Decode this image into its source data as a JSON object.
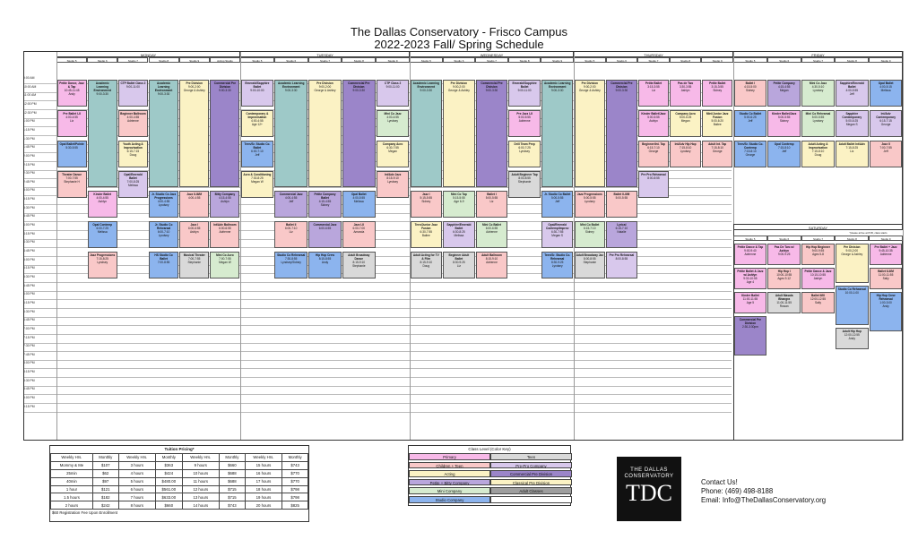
{
  "title_line1": "The Dallas Conservatory - Frisco Campus",
  "title_line2": "2022-2023 Fall/ Spring Schedule",
  "days": [
    "MONDAY",
    "TUESDAY",
    "WEDNESDAY",
    "THURSDAY",
    "FRIDAY"
  ],
  "saturday_label": "SATURDAY",
  "saturday_note": "*please arrive at 8:45, class starts",
  "times": [
    "9:00 AM",
    "10:00 AM",
    "11:00 AM",
    "12:00 PM",
    "12:30 PM",
    "1:00 PM",
    "1:15 PM",
    "1:30 PM",
    "1:45 PM",
    "2:00 PM",
    "2:15 PM",
    "2:30 PM",
    "2:45 PM",
    "3:00 PM",
    "3:15 PM",
    "3:30 PM",
    "3:45 PM",
    "4:00 PM",
    "4:15 PM",
    "4:30 PM",
    "4:45 PM",
    "5:00 PM",
    "5:15 PM",
    "5:30 PM",
    "5:45 PM",
    "6:00 PM",
    "6:15 PM",
    "6:30 PM",
    "6:45 PM",
    "7:00 PM",
    "7:15 PM",
    "7:30 PM",
    "7:45 PM",
    "8:00 PM",
    "8:15 PM",
    "8:30 PM",
    "8:45 PM",
    "9:00 PM",
    "9:15 PM"
  ],
  "studios": {
    "monday": [
      "Studio 5",
      "Studio 6",
      "Studio 7",
      "Studio 8",
      "Studio 9",
      "Acting Studio"
    ],
    "tuesday": [
      "Studio 5",
      "Studio 6",
      "Studio 7",
      "Studio 8",
      "Studio 9"
    ],
    "wednesday": [
      "Studio 5",
      "Studio 6",
      "Studio 7",
      "Studio 8",
      "Studio 9"
    ],
    "thursday": [
      "Studio 5",
      "Studio 6",
      "Studio 7",
      "Studio 8",
      "Studio 9"
    ],
    "friday": [
      "Studio 5",
      "Studio 6",
      "Studio 7",
      "Studio 8",
      "Studio 9"
    ],
    "saturday": [
      "Studio 5",
      "Studio 6",
      "Studio 7",
      "Studio 8",
      "Studio 9"
    ]
  },
  "events": [
    {
      "t": "Petite Dance, Jazz & Tap",
      "s": "10:45-11:45",
      "i": "Andy",
      "c": "#f7b9e8"
    },
    {
      "t": "Academic Learning Environment",
      "s": "9:00-3:30",
      "i": "",
      "c": "#9ec9c8"
    },
    {
      "t": "CTP Ballet Class 2",
      "s": "9:00-11:00",
      "i": "",
      "c": "#d8c8ec"
    },
    {
      "t": "Academic Learning Environment",
      "s": "9:00-3:30",
      "i": "",
      "c": "#9ec9c8"
    },
    {
      "t": "Pre Division",
      "s": "9:00-2:00",
      "i": "George & Ashley",
      "c": "#fbf2c4"
    },
    {
      "t": "Commercial Pre Division",
      "s": "9:00-3:30",
      "i": "",
      "c": "#9b85c9"
    },
    {
      "t": "Emerald/Sapphire Ballet",
      "s": "9:00-10:00",
      "i": "",
      "c": "#d8c8ec"
    },
    {
      "t": "Academic Learning Environment",
      "s": "9:00-3:30",
      "i": "",
      "c": "#9ec9c8"
    },
    {
      "t": "Pre Division",
      "s": "9:00-2:00",
      "i": "George & Ashley",
      "c": "#fbf2c4"
    },
    {
      "t": "Commercial Pre Division",
      "s": "9:00-3:30",
      "i": "",
      "c": "#9b85c9"
    },
    {
      "t": "CTP Class 2",
      "s": "9:00-11:00",
      "i": "",
      "c": "#d8c8ec"
    },
    {
      "t": "Academic Learning Environment",
      "s": "9:00-3:30",
      "i": "",
      "c": "#9ec9c8"
    },
    {
      "t": "Pre Division",
      "s": "9:00-2:00",
      "i": "George & Ashley",
      "c": "#fbf2c4"
    },
    {
      "t": "Commercial Pre Division",
      "s": "9:00-3:30",
      "i": "",
      "c": "#9b85c9"
    },
    {
      "t": "Emerald/Sapphire Ballet",
      "s": "9:00-11:00",
      "i": "",
      "c": "#d8c8ec"
    },
    {
      "t": "Academic Learning Environment",
      "s": "9:00-3:30",
      "i": "",
      "c": "#9ec9c8"
    },
    {
      "t": "Pre Division",
      "s": "9:00-2:00",
      "i": "George & Ashley",
      "c": "#fbf2c4"
    },
    {
      "t": "Commercial Pre Division",
      "s": "9:00-3:30",
      "i": "",
      "c": "#9b85c9"
    },
    {
      "t": "Petite Ballet",
      "s": "3:15-3:55",
      "i": "Liz",
      "c": "#f7b9e8"
    },
    {
      "t": "Pas de Two",
      "s": "3:30-3:55",
      "i": "Ashlyn",
      "c": "#f7b9e8"
    },
    {
      "t": "Petite Ballet",
      "s": "3:15-3:55",
      "i": "Sidney",
      "c": "#f7b9e8"
    },
    {
      "t": "Ballet I",
      "s": "4:15-5:00",
      "i": "Sidney",
      "c": "#f9c8c8"
    },
    {
      "t": "Petite Company",
      "s": "4:15-4:55",
      "i": "Megan",
      "c": "#b9a6dc"
    },
    {
      "t": "Mini Co Jazz",
      "s": "4:30-5:10",
      "i": "Lyndsey",
      "c": "#d6ebcf"
    },
    {
      "t": "Sapphire/Emerald Ballet",
      "s": "4:00-5:55",
      "i": "Jeff",
      "c": "#d8c8ec"
    },
    {
      "t": "Opal Ballet",
      "s": "4:00-5:15",
      "i": "Melissa",
      "c": "#8cb4ee"
    },
    {
      "t": "Pre Ballet I-II",
      "s": "4:00-4:55",
      "i": "Liz",
      "c": "#f7b9e8"
    },
    {
      "t": "Kinder Ballet",
      "s": "4:00-4:55",
      "i": "Ashlyn",
      "c": "#f7b9e8"
    },
    {
      "t": "Beginner Ballroom",
      "s": "4:00-4:55",
      "i": "Adrienne",
      "c": "#f9c8c8"
    },
    {
      "t": "Jr. Studio Co Jazz Progressions",
      "s": "4:00-4:55",
      "i": "Lyndsey",
      "c": "#8cb4ee"
    },
    {
      "t": "Jazz II-III/M",
      "s": "4:00-4:55",
      "i": "",
      "c": "#f9c8c8"
    },
    {
      "t": "Bitty Company",
      "s": "4:15-4:55",
      "i": "Ashlyn",
      "c": "#b9a6dc"
    },
    {
      "t": "Contemporary & Improvisation",
      "s": "4:00-4:55",
      "i": "Age 12+",
      "c": "#fbf2c4"
    },
    {
      "t": "Commercial Jazz",
      "s": "4:00-4:55",
      "i": "Jeff",
      "c": "#b9a6dc"
    },
    {
      "t": "Petite Company Ballet",
      "s": "4:15-4:55",
      "i": "Sidney",
      "c": "#b9a6dc"
    },
    {
      "t": "Opal Ballet",
      "s": "4:00-5:55",
      "i": "Melissa",
      "c": "#8cb4ee"
    },
    {
      "t": "Mini Co Jazz",
      "s": "4:00-4:55",
      "i": "Lyndsey",
      "c": "#d6ebcf"
    },
    {
      "t": "Jazz I",
      "s": "5:15-5:55",
      "i": "Sidney",
      "c": "#f9c8c8"
    },
    {
      "t": "Mini Co Tap",
      "s": "5:15-5:55",
      "i": "Age 6-9",
      "c": "#d6ebcf"
    },
    {
      "t": "Ballet I",
      "s": "5:00-5:55",
      "i": "Liz",
      "c": "#f9c8c8"
    },
    {
      "t": "Pre Jazz I-II",
      "s": "5:00-5:55",
      "i": "Adrienne",
      "c": "#f7b9e8"
    },
    {
      "t": "Jr. Studio Co Ballet",
      "s": "5:00-5:55",
      "i": "Jeff",
      "c": "#8cb4ee"
    },
    {
      "t": "Jazz Progressions",
      "s": "5:00-5:55",
      "i": "Lyndsey",
      "c": "#f9c8c8"
    },
    {
      "t": "Ballet II-II/M",
      "s": "5:00-5:55",
      "i": "",
      "c": "#f9c8c8"
    },
    {
      "t": "Kinder Ballet/Jazz",
      "s": "5:00-5:55",
      "i": "Ashlyn",
      "c": "#f7b9e8"
    },
    {
      "t": "Company Acro",
      "s": "5:00-6:25",
      "i": "Megan",
      "c": "#fbf2c4"
    },
    {
      "t": "Mini/Junior Jazz Fusion",
      "s": "5:00-6:20",
      "i": "Bailee",
      "c": "#fbf2c4"
    },
    {
      "t": "Studio Co Ballet",
      "s": "5:00-6:25",
      "i": "Jeff",
      "c": "#8cb4ee"
    },
    {
      "t": "Kinder Ballet/Jazz",
      "s": "5:00-5:55",
      "i": "Sidney",
      "c": "#f7b9e8"
    },
    {
      "t": "Mini Co Rehearsal",
      "s": "5:00-5:55",
      "i": "Lyndsey",
      "c": "#d6ebcf"
    },
    {
      "t": "Sapphire Contemporary",
      "s": "5:00-6:25",
      "i": "Megan S",
      "c": "#d8c8ec"
    },
    {
      "t": "Int/Adv Contemporary",
      "s": "6:15-7:15",
      "i": "George",
      "c": "#d8c8ec"
    },
    {
      "t": "Opal Ballet/Pointe",
      "s": "5:30-5:55",
      "i": "",
      "c": "#8cb4ee"
    },
    {
      "t": "Opal Contemp",
      "s": "6:00-7:25",
      "i": "Melissa",
      "c": "#8cb4ee"
    },
    {
      "t": "Youth Acting & Improvisation",
      "s": "6:15-7:15",
      "i": "Doug",
      "c": "#fbf2c4"
    },
    {
      "t": "Jr. Studio Co Rehearsal",
      "s": "6:00-7:10",
      "i": "Lyndsey",
      "c": "#8cb4ee"
    },
    {
      "t": "Jazz I",
      "s": "6:00-6:55",
      "i": "Ashlyn",
      "c": "#f9c8c8"
    },
    {
      "t": "Int/Adv Ballroom",
      "s": "6:00-6:55",
      "i": "Adrienne",
      "c": "#f9c8c8"
    },
    {
      "t": "Teen/Sr. Studio Co. Ballet",
      "s": "6:00-7:10",
      "i": "Jeff",
      "c": "#8cb4ee"
    },
    {
      "t": "Ballet II",
      "s": "6:00-7:10",
      "i": "Liz",
      "c": "#f9c8c8"
    },
    {
      "t": "Commercial Jazz",
      "s": "6:00-6:55",
      "i": "",
      "c": "#b9a6dc"
    },
    {
      "t": "Jazz I-II",
      "s": "6:00-7:00",
      "i": "Amanda",
      "c": "#f9c8c8"
    },
    {
      "t": "Company Acro",
      "s": "6:30-7:55",
      "i": "Megan",
      "c": "#fbf2c4"
    },
    {
      "t": "Teen/Junior Jazz Fusion",
      "s": "6:30-7:55",
      "i": "Bailee",
      "c": "#fbf2c4"
    },
    {
      "t": "Sapphire/Emerald Ballet",
      "s": "6:30-8:25",
      "i": "Melissa",
      "c": "#d8c8ec"
    },
    {
      "t": "Mini Co Ballet",
      "s": "6:00-6:55",
      "i": "Adrienne",
      "c": "#d6ebcf"
    },
    {
      "t": "Drill Team Prep",
      "s": "6:00-7:25",
      "i": "Lyndsey",
      "c": "#fbf2c4"
    },
    {
      "t": "Opal/Emerald Contemp/Improv",
      "s": "6:30-7:55",
      "i": "Megan S",
      "c": "#d8c8ec"
    },
    {
      "t": "Mini Co Ballet",
      "s": "6:15-7:10",
      "i": "Sidney",
      "c": "#d6ebcf"
    },
    {
      "t": "Lyrical",
      "s": "6:15-7:10",
      "i": "Natalie",
      "c": "#b9a6dc"
    },
    {
      "t": "Beginner/Int. Tap",
      "s": "6:15-7:10",
      "i": "George",
      "c": "#f9c8c8"
    },
    {
      "t": "Int/Adv Hip Hop",
      "s": "7:15-8:10",
      "i": "Lyndsey",
      "c": "#f9c8c8"
    },
    {
      "t": "Adult Int. Tap",
      "s": "7:15-8:10",
      "i": "George",
      "c": "#f9c8c8"
    },
    {
      "t": "Teen/Sr. Studio Co. Contemp",
      "s": "7:15-8:10",
      "i": "George",
      "c": "#8cb4ee"
    },
    {
      "t": "Opal Contemp",
      "s": "7:15-8:10",
      "i": "Jeff",
      "c": "#8cb4ee"
    },
    {
      "t": "Adult Acting & Improvisation",
      "s": "7:15-8:10",
      "i": "Doug",
      "c": "#fbf2c4"
    },
    {
      "t": "Adult Ballet Int/Adv",
      "s": "7:15-8:25",
      "i": "Liz",
      "c": "#fbf2c4"
    },
    {
      "t": "Jazz II",
      "s": "7:00-7:55",
      "i": "Jeff",
      "c": "#f9c8c8"
    },
    {
      "t": "Theater Dance",
      "s": "7:00-7:55",
      "i": "Stephanie H",
      "c": "#f9c8c8"
    },
    {
      "t": "Jazz Progressions",
      "s": "7:15-8:25",
      "i": "Lyndsey",
      "c": "#f9c8c8"
    },
    {
      "t": "Opal/Emerald Ballet",
      "s": "7:00-8:25",
      "i": "Melissa",
      "c": "#d8c8ec"
    },
    {
      "t": "HS Studio Co Ballet",
      "s": "7:00-8:55",
      "i": "",
      "c": "#8cb4ee"
    },
    {
      "t": "Musical Theater",
      "s": "7:00-7:55",
      "i": "Stephanie",
      "c": "#d9d9d9"
    },
    {
      "t": "Mini Co Acro",
      "s": "7:00-7:55",
      "i": "Megan W",
      "c": "#d6ebcf"
    },
    {
      "t": "Acro & Conditioning",
      "s": "7:30-8:25",
      "i": "Megan W",
      "c": "#fbf2c4"
    },
    {
      "t": "Studio Co Rehearsal",
      "s": "7:30-8:55",
      "i": "Lyndsey/Sidney",
      "c": "#8cb4ee"
    },
    {
      "t": "Hip Hop Crew",
      "s": "8:15-8:55",
      "i": "Andy",
      "c": "#8cb4ee"
    },
    {
      "t": "Adult Broadway Dance",
      "s": "8:15-9:10",
      "i": "Stephanie",
      "c": "#d9d9d9"
    },
    {
      "t": "Int/Adv Jazz",
      "s": "8:15-9:10",
      "i": "Lyndsey",
      "c": "#f9c8c8"
    },
    {
      "t": "Adult Acting for TV & Film",
      "s": "8:15-9:10",
      "i": "Doug",
      "c": "#d9d9d9"
    },
    {
      "t": "Beginner Adult Ballet",
      "s": "8:30-9:25",
      "i": "Liz",
      "c": "#d9d9d9"
    },
    {
      "t": "Adult Ballroom",
      "s": "8:15-9:10",
      "i": "Adrienne",
      "c": "#f9c8c8"
    },
    {
      "t": "Adult Beginner Tap",
      "s": "8:00-8:55",
      "i": "Stephanie",
      "c": "#d9d9d9"
    },
    {
      "t": "Teen/Sr. Studio Co. Rehearsal",
      "s": "8:30-9:25",
      "i": "Lyndsey",
      "c": "#8cb4ee"
    },
    {
      "t": "Adult Broadway Jaz",
      "s": "8:00-8:55",
      "i": "Stephanie",
      "c": "#d9d9d9"
    },
    {
      "t": "Pre Pro Rehearsal",
      "s": "8:00-8:55",
      "i": "",
      "c": "#d8c8ec"
    },
    {
      "t": "Pre Pro Rehearsal",
      "s": "8:00-8:55",
      "i": "",
      "c": "#d8c8ec"
    }
  ],
  "saturday_events": [
    {
      "t": "Petite Dance & Tap",
      "s": "9:00-9:40",
      "i": "Adrienne",
      "c": "#f7b9e8"
    },
    {
      "t": "Pas De Two w/ Ashlyn",
      "s": "9:00-9:25",
      "i": "",
      "c": "#f7b9e8"
    },
    {
      "t": "Hip Hop Beginner",
      "s": "9:00-9:55",
      "i": "Ages 5-8",
      "c": "#f9c8c8"
    },
    {
      "t": "Pre Division",
      "s": "9:00-2:00",
      "i": "George & Ashley",
      "c": "#fbf2c4"
    },
    {
      "t": "Pre Ballet + Jazz",
      "s": "9:45-10:35",
      "i": "Adrienne",
      "c": "#f7b9e8"
    },
    {
      "t": "Petite Ballet & Jazz w/ Ashlyn",
      "s": "9:30-10:55",
      "i": "Age 4",
      "c": "#f7b9e8"
    },
    {
      "t": "Hip Hop I",
      "s": "10:00-10:55",
      "i": "Ages 9-12",
      "c": "#f9c8c8"
    },
    {
      "t": "Petite Dance & Jazz",
      "s": "10:15-10:55",
      "i": "Ashlyn",
      "c": "#f7b9e8"
    },
    {
      "t": "Studio Co Rehearsal",
      "s": "10:00-1:00",
      "i": "",
      "c": "#8cb4ee"
    },
    {
      "t": "Ballet II-II/M",
      "s": "11:00-11:55",
      "i": "Sally",
      "c": "#f9c8c8"
    },
    {
      "t": "Kinder Ballet",
      "s": "11:00-11:55",
      "i": "Age 5",
      "c": "#f7b9e8"
    },
    {
      "t": "Adult Masala Bhangra",
      "s": "11:00-11:55",
      "i": "Rowan",
      "c": "#d9d9d9"
    },
    {
      "t": "Ballet II/III",
      "s": "12:00-12:55",
      "i": "Sally",
      "c": "#f9c8c8"
    },
    {
      "t": "Adult Hip Hop",
      "s": "12:00-12:55",
      "i": "Andy",
      "c": "#d9d9d9"
    },
    {
      "t": "Hip Hop Crew Rehearsal",
      "s": "1:00-3:00",
      "i": "Andy",
      "c": "#8cb4ee"
    },
    {
      "t": "Commercial Pre Division",
      "s": "2:30-3:30pm",
      "i": "",
      "c": "#9b85c9"
    }
  ],
  "tuition_title": "Tuition Pricing*",
  "tuition_headers": [
    "Weekly Hrs.",
    "Monthly",
    "Weekly Hrs.",
    "Monthly",
    "Weekly Hrs.",
    "Monthly",
    "Weekly Hrs.",
    "Monthly"
  ],
  "tuition_rows": [
    [
      "Mommy & Me",
      "$107",
      "3 hours",
      "$363",
      "9 hours",
      "$660",
      "15 hours",
      "$743"
    ],
    [
      "25min",
      "$62",
      "4 hours",
      "$424",
      "10 hours",
      "$688",
      "16 hours",
      "$770"
    ],
    [
      "40min",
      "$97",
      "5 hours",
      "$480.00",
      "11 hours",
      "$688",
      "17 hours",
      "$770"
    ],
    [
      "1 hour",
      "$121",
      "6 hours",
      "$561.00",
      "12 hours",
      "$715",
      "18 hours",
      "$798"
    ],
    [
      "1.5 hours",
      "$182",
      "7 hours",
      "$633.00",
      "13 hours",
      "$715",
      "19 hours",
      "$798"
    ],
    [
      "2 hours",
      "$242",
      "8 hours",
      "$660",
      "14 hours",
      "$743",
      "20 hours",
      "$825"
    ]
  ],
  "tuition_note": "$60 Registration Fee Upon Enrollment",
  "legend_title": "Class Level (Color Key)",
  "legend": [
    {
      "label": "Primary",
      "c": "#f7b9e8"
    },
    {
      "label": "Teen",
      "c": "#d9d9d9"
    },
    {
      "label": "Children + Teen",
      "c": "#f9c8c8"
    },
    {
      "label": "Pre-Pro Company",
      "c": "#d8c8ec"
    },
    {
      "label": "Acting",
      "c": "#fbf2c4"
    },
    {
      "label": "Commercial Pre Division",
      "c": "#9b85c9"
    },
    {
      "label": "Petite + Bitty Company",
      "c": "#b9a6dc"
    },
    {
      "label": "Classical Pre Division",
      "c": "#fbf2c4"
    },
    {
      "label": "Mini Company",
      "c": "#d6ebcf"
    },
    {
      "label": "Adult Classes",
      "c": "#9e9e9e"
    },
    {
      "label": "Studio Company",
      "c": "#8cb4ee"
    },
    {
      "label": "",
      "c": "#ffffff"
    }
  ],
  "logo_line1": "THE DALLAS",
  "logo_line2": "CONSERVATORY",
  "logo_mark": "TDC",
  "contact_title": "Contact Us!",
  "contact_phone": "Phone: (469) 498-8188",
  "contact_email": "Email: Info@TheDallasConservatory.org"
}
